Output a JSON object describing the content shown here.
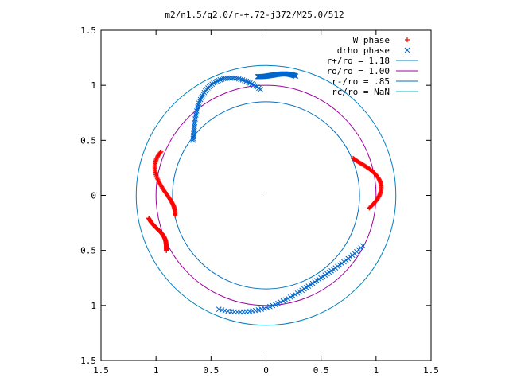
{
  "chart_data": {
    "type": "scatter",
    "title": "m2/n1.5/q2.0/r-+.72-j372/M25.0/512",
    "xlabel": "",
    "ylabel": "",
    "xlim": [
      -1.5,
      1.5
    ],
    "ylim": [
      -1.5,
      1.5
    ],
    "x_tick_labels": [
      "1.5",
      "1",
      "0.5",
      "0",
      "0.5",
      "1",
      "1.5"
    ],
    "x_tick_values": [
      -1.5,
      -1,
      -0.5,
      0,
      0.5,
      1,
      1.5
    ],
    "y_tick_labels": [
      "1.5",
      "1",
      "0.5",
      "0",
      "0.5",
      "1",
      "1.5"
    ],
    "y_tick_values": [
      1.5,
      1,
      0.5,
      0,
      -0.5,
      -1,
      -1.5
    ],
    "grid": false,
    "legend_position": "top-right",
    "series": [
      {
        "name": "W phase",
        "marker": "plus",
        "color": "#ff0000",
        "arcs": [
          {
            "center_angle_deg": 8,
            "span_deg": 30,
            "r_min": 0.84,
            "r_max": 1.05
          },
          {
            "center_angle_deg": 175,
            "span_deg": 35,
            "r_min": 0.84,
            "r_max": 1.05
          },
          {
            "center_angle_deg": 200,
            "span_deg": 18,
            "r_min": 1.0,
            "r_max": 1.09
          }
        ]
      },
      {
        "name": "drho phase",
        "marker": "x",
        "color": "#0066cc",
        "arcs": [
          {
            "center_angle_deg": 118,
            "span_deg": 50,
            "r_min": 0.8,
            "r_max": 1.13
          },
          {
            "center_angle_deg": 85,
            "span_deg": 18,
            "r_min": 1.08,
            "r_max": 1.12
          },
          {
            "center_angle_deg": 290,
            "span_deg": 85,
            "r_min": 0.9,
            "r_max": 1.13
          }
        ]
      }
    ],
    "circles": [
      {
        "label": "r+/ro = 1.18",
        "radius": 1.18,
        "color": "#0080c0"
      },
      {
        "label": "ro/ro = 1.00",
        "radius": 1.0,
        "color": "#a000a0"
      },
      {
        "label": "r-/ro = .85",
        "radius": 0.85,
        "color": "#0070c0"
      },
      {
        "label": "rc/ro = NaN",
        "radius": null,
        "color": "#00c0c0"
      }
    ]
  }
}
